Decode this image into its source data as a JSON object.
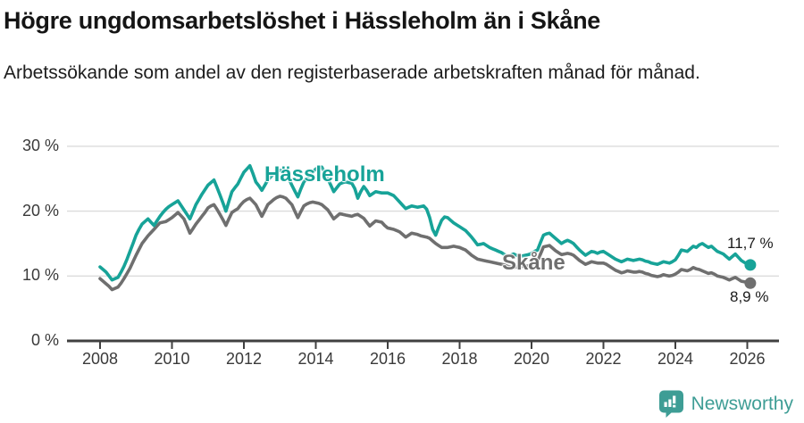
{
  "header": {
    "title": "Högre ungdomsarbetslöshet i Hässleholm än i Skåne",
    "subtitle": "Arbetssökande som andel av den registerbaserade arbetskraften månad för månad."
  },
  "chart_data": {
    "type": "line",
    "title": "Högre ungdomsarbetslöshet i Hässleholm än i Skåne",
    "subtitle": "Arbetssökande som andel av den registerbaserade arbetskraften månad för månad.",
    "x_unit": "month",
    "x_range": [
      "2008-01",
      "2026-02"
    ],
    "x_tick_labels": [
      "2008",
      "2010",
      "2012",
      "2014",
      "2016",
      "2018",
      "2020",
      "2022",
      "2024",
      "2026"
    ],
    "y_ticks": [
      0,
      10,
      20,
      30
    ],
    "y_tick_labels": [
      "0 %",
      "10 %",
      "20 %",
      "30 %"
    ],
    "ylim": [
      0,
      31
    ],
    "grid": "horizontal",
    "legend_position": "inline-labels",
    "series": [
      {
        "name": "Hässleholm",
        "color": "#17a398",
        "end_label": "11,7 %",
        "last_value": 11.7,
        "values": [
          11.4,
          11.0,
          10.6,
          10.0,
          9.4,
          9.6,
          9.8,
          10.6,
          11.5,
          12.6,
          13.8,
          15.0,
          16.3,
          17.2,
          18.0,
          18.4,
          18.8,
          18.3,
          17.8,
          18.5,
          19.2,
          19.8,
          20.3,
          20.7,
          21.0,
          21.3,
          21.6,
          20.9,
          20.2,
          19.5,
          18.8,
          19.9,
          21.0,
          21.8,
          22.6,
          23.3,
          24.0,
          24.4,
          24.8,
          23.7,
          22.5,
          21.3,
          20.0,
          21.5,
          23.0,
          23.6,
          24.2,
          25.1,
          26.0,
          26.5,
          27.0,
          25.8,
          24.5,
          23.9,
          23.2,
          24.0,
          24.8,
          25.3,
          25.8,
          26.1,
          26.3,
          26.2,
          26.0,
          25.0,
          24.0,
          23.1,
          22.2,
          23.4,
          24.5,
          25.0,
          25.5,
          26.0,
          26.5,
          26.7,
          26.8,
          25.9,
          25.0,
          24.0,
          23.0,
          23.6,
          24.2,
          24.4,
          24.5,
          24.4,
          24.3,
          23.5,
          22.0,
          23.0,
          23.8,
          23.2,
          22.4,
          22.7,
          23.0,
          22.9,
          22.8,
          22.8,
          22.8,
          22.6,
          22.4,
          21.9,
          21.4,
          20.9,
          20.4,
          20.6,
          20.8,
          20.7,
          20.6,
          20.7,
          20.8,
          20.3,
          19.0,
          17.2,
          16.3,
          17.5,
          18.6,
          19.1,
          19.0,
          18.6,
          18.2,
          17.9,
          17.6,
          17.3,
          17.0,
          16.5,
          16.0,
          15.4,
          14.8,
          14.9,
          15.0,
          14.7,
          14.4,
          14.2,
          14.0,
          13.8,
          13.6,
          13.3,
          13.0,
          13.2,
          13.4,
          13.2,
          13.0,
          13.1,
          13.2,
          13.3,
          13.5,
          13.8,
          14.0,
          15.2,
          16.3,
          16.5,
          16.6,
          16.2,
          15.8,
          15.4,
          15.0,
          15.3,
          15.5,
          15.3,
          15.0,
          14.5,
          14.0,
          13.6,
          13.2,
          13.5,
          13.8,
          13.7,
          13.5,
          13.7,
          13.8,
          13.5,
          13.2,
          12.9,
          12.6,
          12.4,
          12.2,
          12.4,
          12.6,
          12.5,
          12.4,
          12.5,
          12.6,
          12.5,
          12.3,
          12.2,
          12.0,
          11.9,
          11.8,
          12.0,
          12.2,
          12.1,
          12.0,
          12.2,
          12.5,
          13.2,
          14.0,
          13.9,
          13.8,
          14.2,
          14.6,
          14.4,
          14.8,
          15.0,
          14.7,
          14.4,
          14.6,
          14.2,
          13.8,
          13.6,
          13.4,
          13.0,
          12.6,
          13.0,
          13.4,
          12.9,
          12.4,
          12.1,
          11.9,
          11.7
        ]
      },
      {
        "name": "Skåne",
        "color": "#6f6f6f",
        "end_label": "8,9 %",
        "last_value": 8.9,
        "values": [
          9.6,
          9.2,
          8.8,
          8.4,
          7.9,
          8.1,
          8.3,
          8.9,
          9.6,
          10.4,
          11.2,
          12.2,
          13.2,
          14.1,
          15.0,
          15.6,
          16.2,
          16.7,
          17.2,
          17.7,
          18.2,
          18.3,
          18.4,
          18.7,
          19.0,
          19.4,
          19.8,
          19.3,
          18.8,
          17.7,
          16.6,
          17.3,
          18.0,
          18.6,
          19.2,
          19.8,
          20.5,
          20.8,
          21.0,
          20.3,
          19.5,
          18.7,
          17.8,
          18.8,
          19.8,
          20.1,
          20.4,
          21.0,
          21.5,
          21.8,
          22.0,
          21.5,
          21.0,
          20.1,
          19.2,
          20.1,
          21.0,
          21.4,
          21.8,
          22.1,
          22.3,
          22.2,
          22.0,
          21.5,
          21.0,
          20.0,
          19.0,
          19.9,
          20.8,
          21.1,
          21.3,
          21.4,
          21.3,
          21.2,
          21.0,
          20.6,
          20.2,
          19.5,
          18.8,
          19.2,
          19.6,
          19.5,
          19.4,
          19.3,
          19.2,
          19.4,
          19.5,
          19.2,
          18.9,
          18.3,
          17.7,
          18.1,
          18.5,
          18.4,
          18.3,
          17.8,
          17.4,
          17.3,
          17.2,
          17.0,
          16.8,
          16.4,
          16.0,
          16.3,
          16.6,
          16.5,
          16.4,
          16.2,
          16.1,
          16.0,
          15.8,
          15.4,
          15.0,
          14.7,
          14.4,
          14.4,
          14.4,
          14.5,
          14.6,
          14.5,
          14.4,
          14.2,
          14.0,
          13.6,
          13.2,
          12.9,
          12.6,
          12.5,
          12.4,
          12.3,
          12.2,
          12.1,
          12.0,
          11.9,
          11.8,
          11.7,
          11.5,
          11.4,
          11.3,
          11.4,
          11.5,
          11.5,
          11.5,
          11.6,
          11.7,
          12.0,
          12.3,
          13.4,
          14.5,
          14.6,
          14.7,
          14.3,
          13.9,
          13.6,
          13.3,
          13.4,
          13.5,
          13.4,
          13.2,
          12.8,
          12.4,
          12.1,
          11.8,
          12.0,
          12.2,
          12.1,
          12.0,
          12.0,
          12.0,
          11.8,
          11.5,
          11.2,
          10.9,
          10.7,
          10.5,
          10.6,
          10.8,
          10.7,
          10.6,
          10.6,
          10.7,
          10.6,
          10.4,
          10.3,
          10.1,
          10.0,
          9.9,
          10.0,
          10.2,
          10.1,
          10.0,
          10.1,
          10.3,
          10.6,
          11.0,
          10.9,
          10.8,
          11.0,
          11.3,
          11.1,
          11.0,
          10.8,
          10.6,
          10.4,
          10.5,
          10.3,
          10.0,
          9.9,
          9.8,
          9.6,
          9.4,
          9.6,
          9.8,
          9.5,
          9.2,
          9.1,
          9.0,
          8.9
        ]
      }
    ],
    "axis_color": "#404040",
    "gridline_color": "#dcdcdc"
  },
  "footer": {
    "brand": "Newsworthy",
    "brand_color": "#3e9d95"
  }
}
